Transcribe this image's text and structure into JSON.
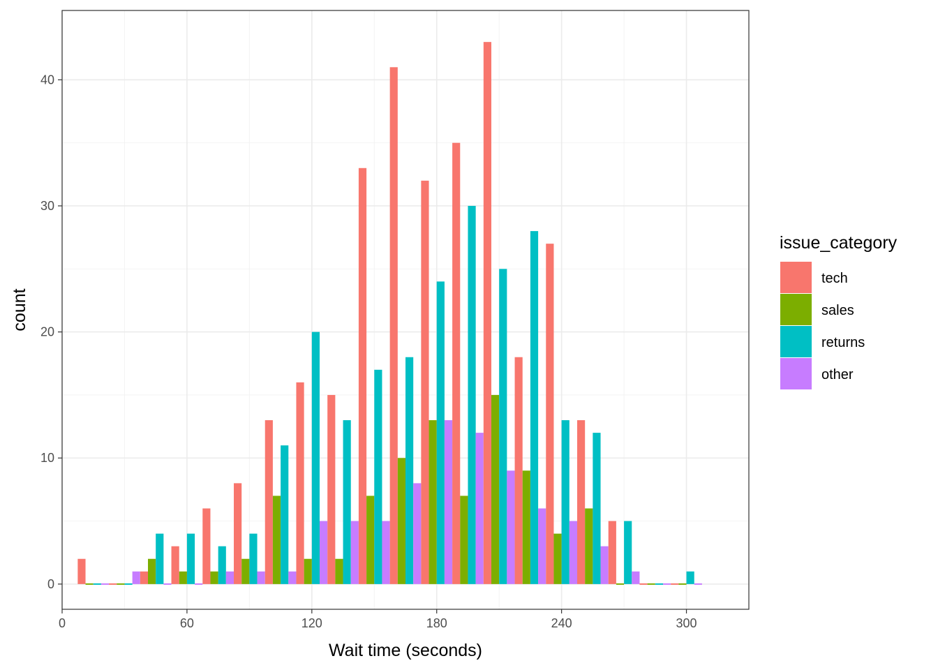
{
  "chart_data": {
    "type": "bar",
    "title": "",
    "xlabel": "Wait time (seconds)",
    "ylabel": "count",
    "xlim": [
      0,
      330
    ],
    "ylim": [
      -2,
      45.5
    ],
    "x_ticks": [
      0,
      60,
      120,
      180,
      240,
      300
    ],
    "y_ticks": [
      0,
      10,
      20,
      30,
      40
    ],
    "grid": true,
    "bin_width": 15,
    "bin_centers": [
      15,
      30,
      45,
      60,
      75,
      90,
      105,
      120,
      135,
      150,
      165,
      180,
      195,
      210,
      225,
      240,
      255,
      270,
      285,
      300
    ],
    "legend": {
      "title": "issue_category",
      "position": "right"
    },
    "series": [
      {
        "name": "tech",
        "color": "#F8766D",
        "values": [
          2,
          0,
          1,
          3,
          6,
          8,
          13,
          16,
          15,
          33,
          41,
          32,
          35,
          43,
          18,
          27,
          13,
          5,
          0,
          0
        ]
      },
      {
        "name": "sales",
        "color": "#7CAE00",
        "values": [
          0,
          0,
          2,
          1,
          1,
          2,
          7,
          2,
          2,
          7,
          10,
          13,
          7,
          15,
          9,
          4,
          6,
          0,
          0,
          0
        ]
      },
      {
        "name": "returns",
        "color": "#00BFC4",
        "values": [
          0,
          0,
          4,
          4,
          3,
          4,
          11,
          20,
          13,
          17,
          18,
          24,
          30,
          25,
          28,
          13,
          12,
          5,
          0,
          1
        ]
      },
      {
        "name": "other",
        "color": "#C77CFF",
        "values": [
          0,
          1,
          0,
          0,
          1,
          1,
          1,
          5,
          5,
          5,
          8,
          13,
          12,
          9,
          6,
          5,
          3,
          1,
          0,
          0
        ]
      }
    ]
  }
}
